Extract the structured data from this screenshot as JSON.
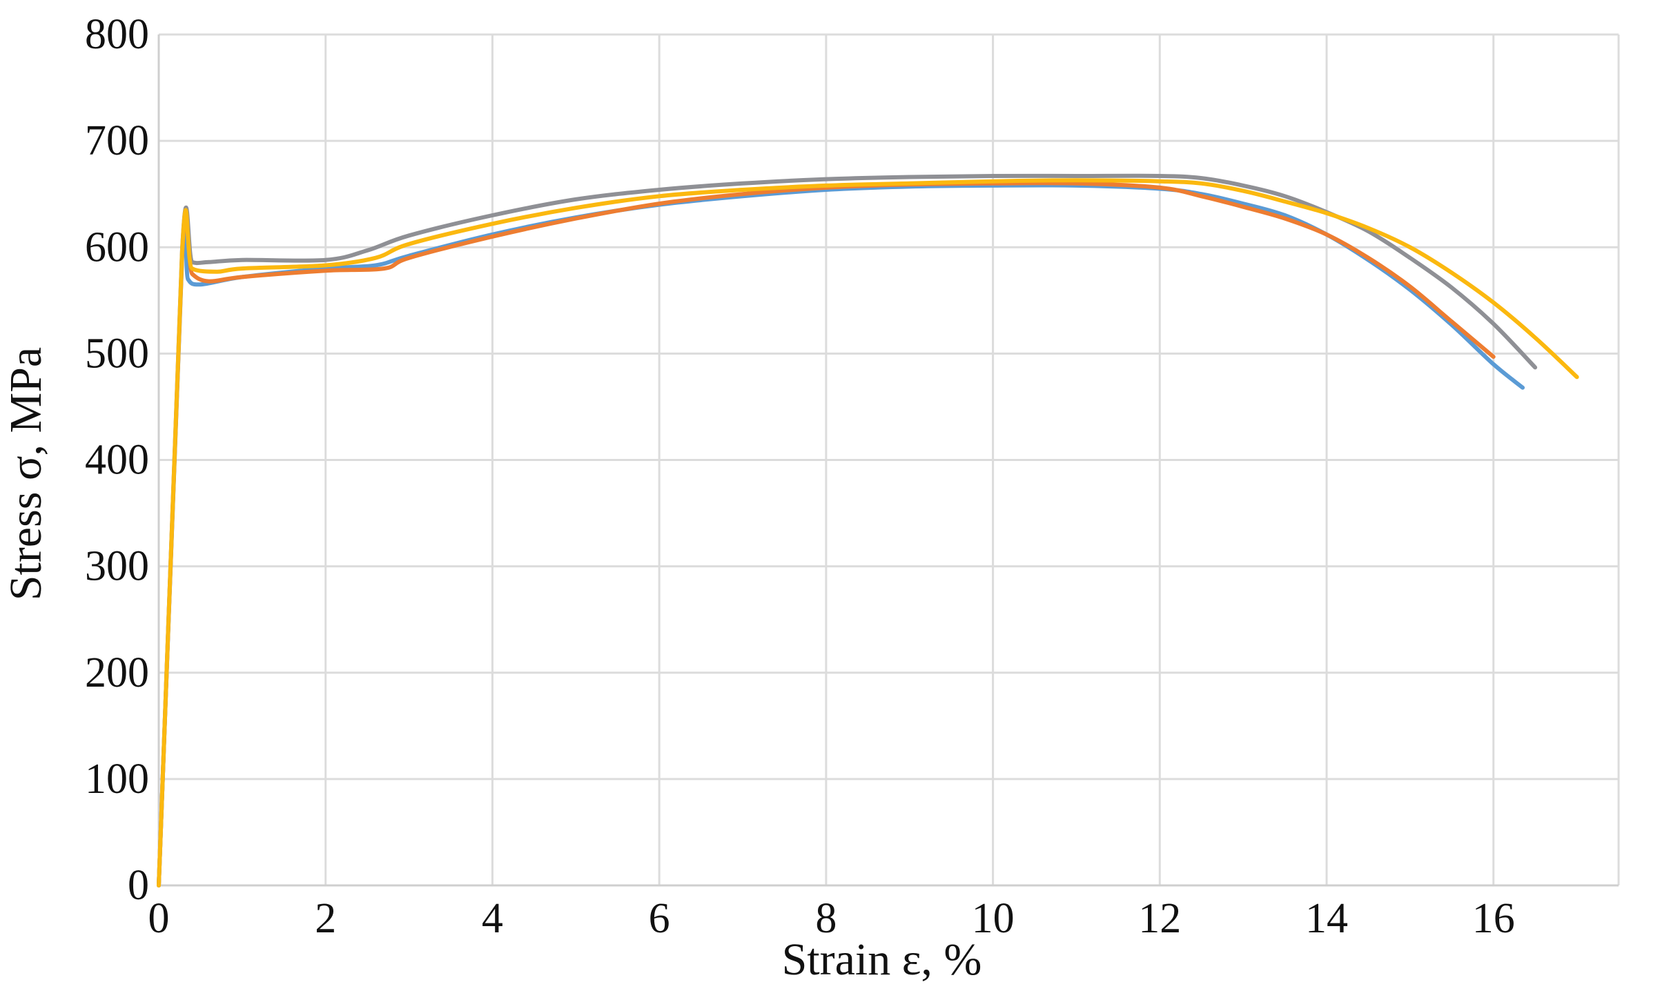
{
  "chart_data": {
    "type": "line",
    "title": "",
    "xlabel": "Strain ε, %",
    "ylabel": "Stress σ, MPa",
    "xlim": [
      0,
      17.5
    ],
    "ylim": [
      0,
      800
    ],
    "x_ticks": [
      0,
      2,
      4,
      6,
      8,
      10,
      12,
      14,
      16
    ],
    "y_ticks": [
      0,
      100,
      200,
      300,
      400,
      500,
      600,
      700,
      800
    ],
    "x_tick_labels": [
      "0",
      "2",
      "4",
      "6",
      "8",
      "10",
      "12",
      "14",
      "16"
    ],
    "y_tick_labels": [
      "0",
      "100",
      "200",
      "300",
      "400",
      "500",
      "600",
      "700",
      "800"
    ],
    "grid": true,
    "legend": "none",
    "series": [
      {
        "color": "#5b9bd5",
        "points": [
          [
            0,
            0
          ],
          [
            0.28,
            590
          ],
          [
            0.35,
            570
          ],
          [
            0.5,
            565
          ],
          [
            1.0,
            572
          ],
          [
            2.0,
            580
          ],
          [
            2.6,
            583
          ],
          [
            3.0,
            592
          ],
          [
            4.0,
            612
          ],
          [
            5.0,
            628
          ],
          [
            6.0,
            640
          ],
          [
            7.0,
            648
          ],
          [
            8.0,
            654
          ],
          [
            9.0,
            657
          ],
          [
            10.0,
            658
          ],
          [
            11.0,
            658
          ],
          [
            12.0,
            655
          ],
          [
            12.5,
            650
          ],
          [
            13.0,
            641
          ],
          [
            13.5,
            630
          ],
          [
            14.0,
            612
          ],
          [
            14.5,
            588
          ],
          [
            15.0,
            560
          ],
          [
            15.5,
            527
          ],
          [
            16.0,
            490
          ],
          [
            16.35,
            468
          ]
        ]
      },
      {
        "color": "#ed7d31",
        "points": [
          [
            0,
            0
          ],
          [
            0.28,
            592
          ],
          [
            0.4,
            575
          ],
          [
            0.6,
            568
          ],
          [
            1.0,
            572
          ],
          [
            2.0,
            578
          ],
          [
            2.7,
            580
          ],
          [
            3.0,
            590
          ],
          [
            4.0,
            610
          ],
          [
            5.0,
            627
          ],
          [
            6.0,
            641
          ],
          [
            7.0,
            650
          ],
          [
            8.0,
            656
          ],
          [
            9.0,
            659
          ],
          [
            10.0,
            660
          ],
          [
            11.0,
            660
          ],
          [
            12.0,
            656
          ],
          [
            12.5,
            648
          ],
          [
            13.0,
            638
          ],
          [
            13.5,
            627
          ],
          [
            14.0,
            612
          ],
          [
            14.5,
            590
          ],
          [
            15.0,
            563
          ],
          [
            15.5,
            530
          ],
          [
            16.0,
            497
          ]
        ]
      },
      {
        "color": "#8f9095",
        "points": [
          [
            0,
            0
          ],
          [
            0.28,
            596
          ],
          [
            0.4,
            586
          ],
          [
            0.6,
            586
          ],
          [
            1.0,
            588
          ],
          [
            2.0,
            588
          ],
          [
            2.5,
            597
          ],
          [
            3.0,
            611
          ],
          [
            4.0,
            630
          ],
          [
            5.0,
            645
          ],
          [
            6.0,
            654
          ],
          [
            7.0,
            660
          ],
          [
            8.0,
            664
          ],
          [
            9.0,
            666
          ],
          [
            10.0,
            667
          ],
          [
            11.0,
            667
          ],
          [
            12.0,
            667
          ],
          [
            12.5,
            665
          ],
          [
            13.0,
            658
          ],
          [
            13.5,
            648
          ],
          [
            14.0,
            633
          ],
          [
            14.5,
            615
          ],
          [
            15.0,
            590
          ],
          [
            15.5,
            562
          ],
          [
            16.0,
            528
          ],
          [
            16.5,
            487
          ]
        ]
      },
      {
        "color": "#fbb80f",
        "points": [
          [
            0,
            0
          ],
          [
            0.28,
            595
          ],
          [
            0.4,
            580
          ],
          [
            0.7,
            577
          ],
          [
            1.0,
            580
          ],
          [
            2.0,
            583
          ],
          [
            2.6,
            590
          ],
          [
            3.0,
            603
          ],
          [
            4.0,
            622
          ],
          [
            5.0,
            637
          ],
          [
            6.0,
            648
          ],
          [
            7.0,
            654
          ],
          [
            8.0,
            658
          ],
          [
            9.0,
            660
          ],
          [
            10.0,
            662
          ],
          [
            11.0,
            663
          ],
          [
            12.0,
            662
          ],
          [
            12.5,
            660
          ],
          [
            13.0,
            653
          ],
          [
            13.5,
            643
          ],
          [
            14.0,
            632
          ],
          [
            14.5,
            618
          ],
          [
            15.0,
            600
          ],
          [
            15.5,
            576
          ],
          [
            16.0,
            548
          ],
          [
            16.5,
            515
          ],
          [
            17.0,
            478
          ]
        ]
      }
    ]
  }
}
